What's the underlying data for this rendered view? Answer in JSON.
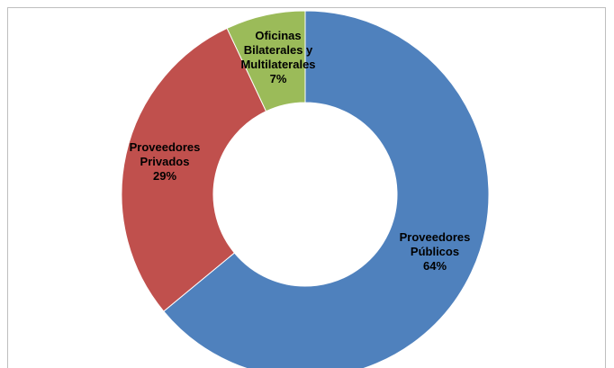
{
  "chart_data": {
    "type": "donut",
    "categories": [
      "Proveedores Públicos",
      "Proveedores Privados",
      "Oficinas Bilaterales y Multilaterales"
    ],
    "values": [
      64,
      29,
      7
    ],
    "value_labels": [
      "64%",
      "29%",
      "7%"
    ],
    "colors": [
      "#4f81bd",
      "#c0504d",
      "#9bbb59"
    ]
  }
}
